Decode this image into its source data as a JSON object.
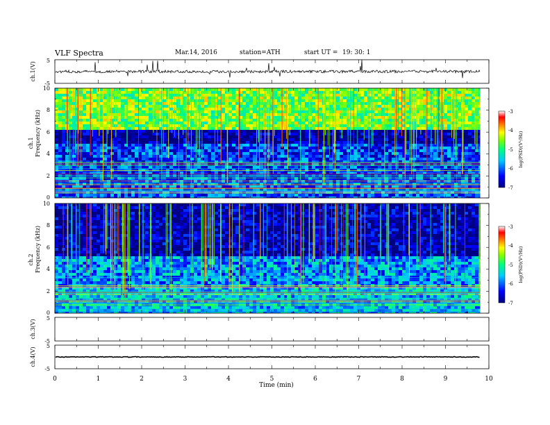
{
  "header": {
    "title": "VLF  Spectra",
    "date": "Mar.14, 2016",
    "station": "station=ATH",
    "start_label": "start  UT  =",
    "start_time": "19: 30: 1"
  },
  "chart_data": [
    {
      "type": "line",
      "panel": "ch1-waveform",
      "ylabel": "ch.1(V)",
      "ylim": [
        -5,
        5
      ],
      "yticks": [
        "5",
        "-5"
      ],
      "baseline_value": 0,
      "color": "#000000"
    },
    {
      "type": "heatmap",
      "panel": "ch1-spectrogram",
      "ylabel_channel": "ch.1",
      "ylabel": "Frequency  (kHz)",
      "ylim": [
        0,
        10
      ],
      "yticks": [
        "0",
        "2",
        "4",
        "6",
        "8",
        "10"
      ],
      "bands": [
        {
          "f_low": 0,
          "f_high": 2,
          "level": -6.1
        },
        {
          "f_low": 2,
          "f_high": 5,
          "level": -6.2
        },
        {
          "f_low": 5,
          "f_high": 6.1,
          "level": -6.9
        },
        {
          "f_low": 6.1,
          "f_high": 10,
          "level": -4.6
        }
      ],
      "colorbar": {
        "label": "log(PSD)(V²/Hz)",
        "range": [
          -7,
          -3
        ],
        "ticks": [
          "-3",
          "-4",
          "-5",
          "-6",
          "-7"
        ]
      }
    },
    {
      "type": "heatmap",
      "panel": "ch2-spectrogram",
      "ylabel_channel": "ch.2",
      "ylabel": "Frequency  (kHz)",
      "ylim": [
        0,
        10
      ],
      "yticks": [
        "0",
        "2",
        "4",
        "6",
        "8",
        "10"
      ],
      "bands": [
        {
          "f_low": 0,
          "f_high": 2.5,
          "level": -5.6
        },
        {
          "f_low": 2.5,
          "f_high": 5.3,
          "level": -5.8
        },
        {
          "f_low": 5.3,
          "f_high": 10,
          "level": -6.8
        }
      ],
      "colorbar": {
        "label": "log(PSD)(V²/Hz)",
        "range": [
          -7,
          -3
        ],
        "ticks": [
          "-3",
          "-4",
          "-5",
          "-6",
          "-7"
        ]
      }
    },
    {
      "type": "line",
      "panel": "ch3-waveform",
      "ylabel": "ch.3(V)",
      "ylim": [
        -5,
        5
      ],
      "yticks": [
        "5",
        "-5"
      ]
    },
    {
      "type": "line",
      "panel": "ch4-waveform",
      "ylabel": "ch.4(V)",
      "ylim": [
        -5,
        5
      ],
      "yticks": [
        "5",
        "-5"
      ],
      "baseline_value": 0
    }
  ],
  "xaxis": {
    "label": "Time  (min)",
    "xlim": [
      0,
      10
    ],
    "data_end": 9.8,
    "ticks": [
      "0",
      "1",
      "2",
      "3",
      "4",
      "5",
      "6",
      "7",
      "8",
      "9",
      "10"
    ]
  }
}
